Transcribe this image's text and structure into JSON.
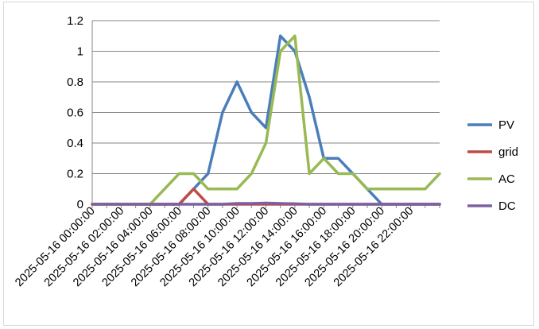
{
  "chart_data": {
    "type": "line",
    "title": "",
    "xlabel": "",
    "ylabel": "",
    "ylim": [
      0,
      1.2
    ],
    "yticks": [
      "0",
      "0.2",
      "0.4",
      "0.6",
      "0.8",
      "1",
      "1.2"
    ],
    "grid": true,
    "legend_position": "right",
    "x": [
      "2025-05-16 00:00:00",
      "2025-05-16 01:00:00",
      "2025-05-16 02:00:00",
      "2025-05-16 03:00:00",
      "2025-05-16 04:00:00",
      "2025-05-16 05:00:00",
      "2025-05-16 06:00:00",
      "2025-05-16 07:00:00",
      "2025-05-16 08:00:00",
      "2025-05-16 09:00:00",
      "2025-05-16 10:00:00",
      "2025-05-16 11:00:00",
      "2025-05-16 12:00:00",
      "2025-05-16 13:00:00",
      "2025-05-16 14:00:00",
      "2025-05-16 15:00:00",
      "2025-05-16 16:00:00",
      "2025-05-16 17:00:00",
      "2025-05-16 18:00:00",
      "2025-05-16 19:00:00",
      "2025-05-16 20:00:00",
      "2025-05-16 21:00:00",
      "2025-05-16 22:00:00",
      "2025-05-16 23:00:00",
      "2025-05-17 00:00:00"
    ],
    "x_tick_labels": [
      "2025-05-16 00:00:00",
      "2025-05-16 02:00:00",
      "2025-05-16 04:00:00",
      "2025-05-16 06:00:00",
      "2025-05-16 08:00:00",
      "2025-05-16 10:00:00",
      "2025-05-16 12:00:00",
      "2025-05-16 14:00:00",
      "2025-05-16 16:00:00",
      "2025-05-16 18:00:00",
      "2025-05-16 20:00:00",
      "2025-05-16 22:00:00"
    ],
    "series": [
      {
        "name": "PV",
        "color": "#4a7ebb",
        "values": [
          0,
          0,
          0,
          0,
          0,
          0,
          0,
          0.1,
          0.2,
          0.6,
          0.8,
          0.6,
          0.5,
          1.1,
          1.0,
          0.7,
          0.3,
          0.3,
          0.2,
          0.1,
          0,
          0,
          0,
          0,
          0
        ]
      },
      {
        "name": "grid",
        "color": "#be4b48",
        "values": [
          0,
          0,
          0,
          0,
          0,
          0,
          0,
          0.1,
          0,
          0,
          0,
          0,
          0,
          0,
          0,
          0,
          0,
          0,
          0,
          0,
          0,
          0,
          0,
          0,
          0
        ]
      },
      {
        "name": "AC",
        "color": "#98b954",
        "values": [
          0,
          0,
          0,
          0,
          0,
          0.1,
          0.2,
          0.2,
          0.1,
          0.1,
          0.1,
          0.2,
          0.4,
          1.0,
          1.1,
          0.2,
          0.3,
          0.2,
          0.2,
          0.1,
          0.1,
          0.1,
          0.1,
          0.1,
          0.2
        ]
      },
      {
        "name": "DC",
        "color": "#7d60a0",
        "values": [
          0,
          0,
          0,
          0,
          0,
          0,
          0,
          0,
          0,
          0,
          0.005,
          0.005,
          0.008,
          0.005,
          0.003,
          0,
          0,
          0,
          0,
          0,
          0,
          0,
          0,
          0,
          0
        ]
      }
    ]
  }
}
